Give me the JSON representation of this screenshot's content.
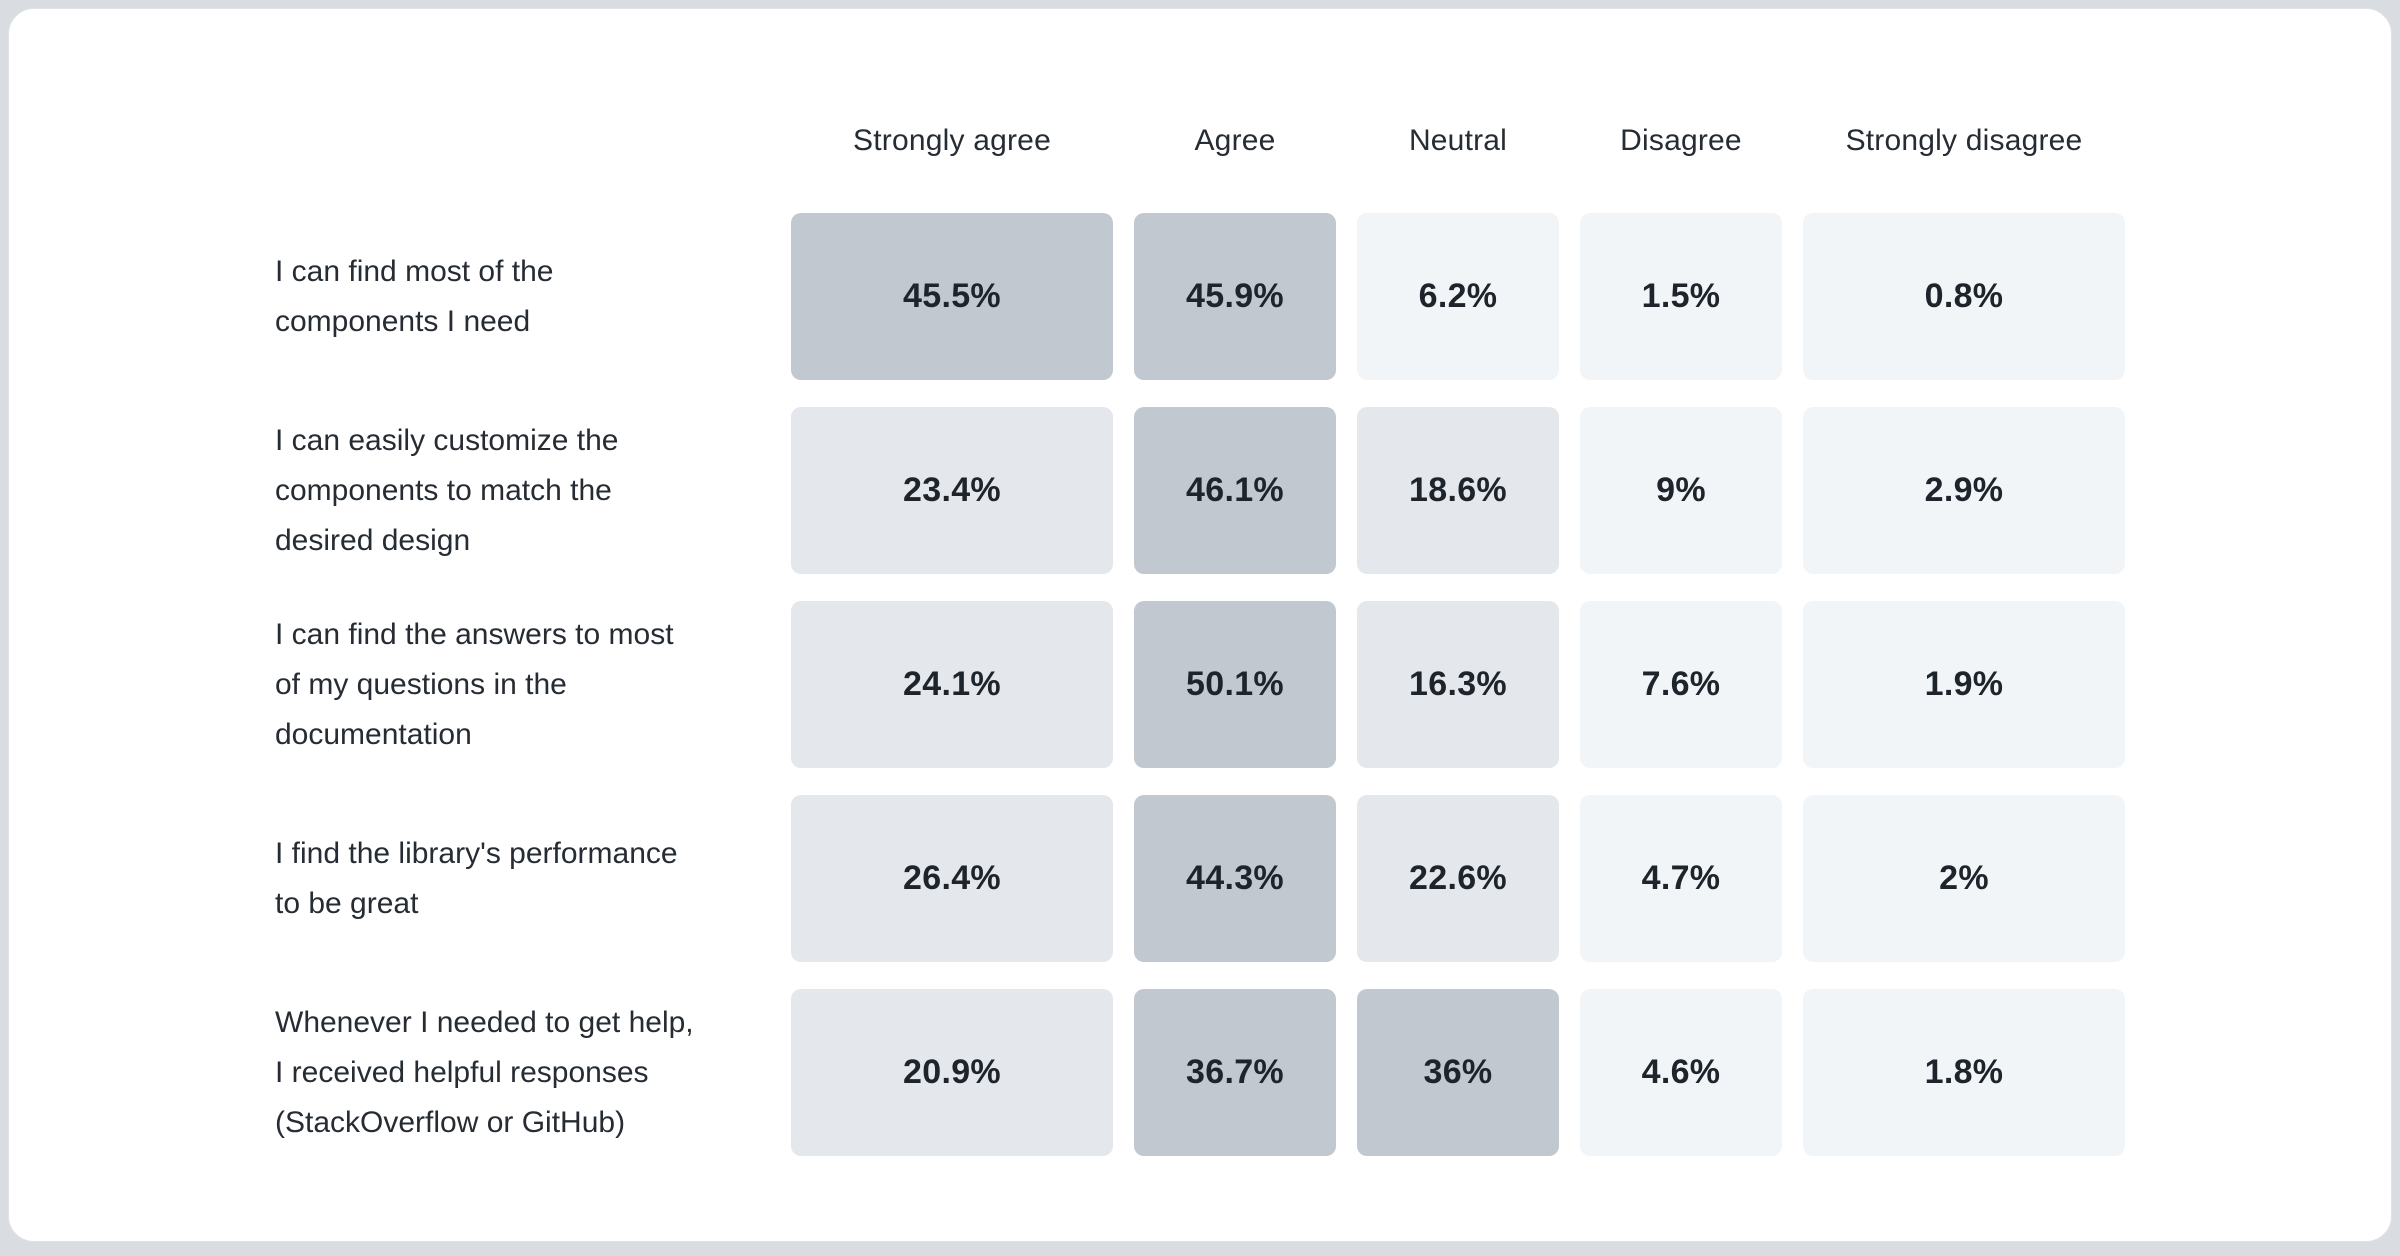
{
  "page": {
    "background": "#d9dde1",
    "card": {
      "background": "#ffffff",
      "border": "#dfe3e7"
    }
  },
  "chart_data": {
    "type": "heatmap",
    "title": "",
    "columns": [
      "Strongly agree",
      "Agree",
      "Neutral",
      "Disagree",
      "Strongly disagree"
    ],
    "rows": [
      {
        "label": "I can find most of the\ncomponents I need",
        "values": [
          45.5,
          45.9,
          6.2,
          1.5,
          0.8
        ],
        "display": [
          "45.5%",
          "45.9%",
          "6.2%",
          "1.5%",
          "0.8%"
        ]
      },
      {
        "label": "I can easily customize the\ncomponents to match the\ndesired design",
        "values": [
          23.4,
          46.1,
          18.6,
          9,
          2.9
        ],
        "display": [
          "23.4%",
          "46.1%",
          "18.6%",
          "9%",
          "2.9%"
        ]
      },
      {
        "label": "I can find the answers to most\nof my questions in the\ndocumentation",
        "values": [
          24.1,
          50.1,
          16.3,
          7.6,
          1.9
        ],
        "display": [
          "24.1%",
          "50.1%",
          "16.3%",
          "7.6%",
          "1.9%"
        ]
      },
      {
        "label": "I find the library's performance\nto be great",
        "values": [
          26.4,
          44.3,
          22.6,
          4.7,
          2
        ],
        "display": [
          "26.4%",
          "44.3%",
          "22.6%",
          "4.7%",
          "2%"
        ]
      },
      {
        "label": "Whenever I needed to get help,\nI received helpful responses\n(StackOverflow or GitHub)",
        "values": [
          20.9,
          36.7,
          36,
          4.6,
          1.8
        ],
        "display": [
          "20.9%",
          "36.7%",
          "36%",
          "4.6%",
          "1.8%"
        ]
      }
    ],
    "color_scale": {
      "low": "#f2f5f8",
      "mid": "#e4e7eb",
      "high": "#c2c8d0",
      "thresholds": [
        10,
        30
      ]
    },
    "cell_text_color": "#1e242b",
    "label_color": "#262c33",
    "legend_position": "none",
    "grid": false
  }
}
